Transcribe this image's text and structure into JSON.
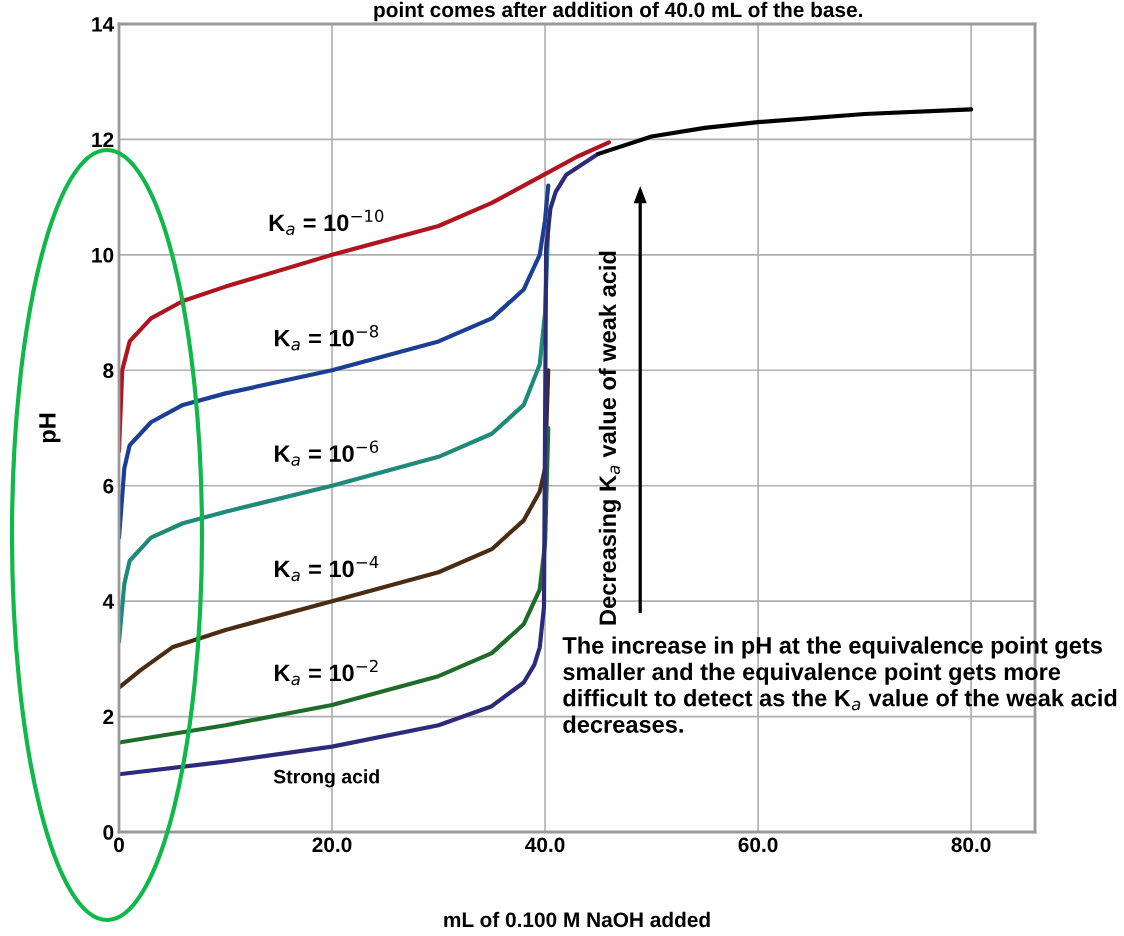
{
  "chart_data": {
    "type": "line",
    "title": "point comes after addition of 40.0 mL of the base.",
    "xlabel": "mL of 0.100 M NaOH added",
    "ylabel": "pH",
    "xlim": [
      0,
      86
    ],
    "ylim": [
      0,
      14
    ],
    "xticks": [
      0,
      {
        "value": 20,
        "label": "20.0"
      },
      {
        "value": 40,
        "label": "40.0"
      },
      {
        "value": 60,
        "label": "60.0"
      },
      {
        "value": 80,
        "label": "80.0"
      }
    ],
    "yticks": [
      0,
      2,
      4,
      6,
      8,
      10,
      12,
      14
    ],
    "grid": true,
    "marker": "none",
    "line_style": "solid",
    "series": [
      {
        "name": "K$_{a}$ = 10$^{−10}$",
        "color": "#b0141e",
        "x": [
          0,
          0.3,
          1,
          3,
          6,
          10,
          20,
          30,
          35,
          38,
          40,
          43,
          46
        ],
        "values": [
          6.6,
          8.0,
          8.5,
          8.9,
          9.2,
          9.45,
          10.0,
          10.5,
          10.9,
          11.2,
          11.4,
          11.7,
          11.95
        ]
      },
      {
        "name": "K$_{a}$ = 10$^{−8}$",
        "color": "#1c3f94",
        "x": [
          0,
          0.5,
          1,
          3,
          6,
          10,
          20,
          30,
          35,
          38,
          39.5,
          40,
          40.3
        ],
        "values": [
          5.1,
          6.3,
          6.7,
          7.1,
          7.4,
          7.6,
          8.0,
          8.5,
          8.9,
          9.4,
          10.0,
          10.6,
          11.2
        ]
      },
      {
        "name": "K$_{a}$ = 10$^{−6}$",
        "color": "#1f8a7a",
        "x": [
          0,
          0.5,
          1,
          3,
          6,
          10,
          20,
          30,
          35,
          38,
          39.5,
          40,
          40.3
        ],
        "values": [
          3.3,
          4.3,
          4.7,
          5.1,
          5.35,
          5.55,
          6.0,
          6.5,
          6.9,
          7.4,
          8.1,
          9.0,
          10.5
        ]
      },
      {
        "name": "K$_{a}$ = 10$^{−4}$",
        "color": "#4a2c14",
        "x": [
          0,
          2,
          5,
          10,
          20,
          30,
          35,
          38,
          39.5,
          40,
          40.3
        ],
        "values": [
          2.5,
          2.8,
          3.2,
          3.5,
          4.0,
          4.5,
          4.9,
          5.4,
          5.9,
          6.3,
          8.0
        ]
      },
      {
        "name": "K$_{a}$ = 10$^{−2}$",
        "color": "#1e6b2a",
        "x": [
          0,
          10,
          20,
          30,
          35,
          38,
          39.5,
          40,
          40.3
        ],
        "values": [
          1.55,
          1.85,
          2.2,
          2.7,
          3.1,
          3.6,
          4.2,
          5.0,
          7.0
        ]
      },
      {
        "name": "Strong acid",
        "color": "#2e2a7a",
        "x": [
          0,
          10,
          20,
          30,
          35,
          38,
          39,
          39.5,
          39.9,
          40,
          40.1,
          40.5,
          41,
          42,
          45
        ],
        "values": [
          1.0,
          1.22,
          1.48,
          1.85,
          2.18,
          2.59,
          2.9,
          3.2,
          3.9,
          7.0,
          10.1,
          10.8,
          11.09,
          11.39,
          11.75
        ]
      },
      {
        "color": "#000000",
        "x": [
          45,
          50,
          55,
          60,
          70,
          80
        ],
        "values": [
          11.75,
          12.05,
          12.2,
          12.3,
          12.44,
          12.52
        ]
      }
    ],
    "annotations": [
      "Decreasing K$_{a}$ value of weak acid",
      "The increase in pH at the equivalence point gets smaller and the equivalence point gets more difficult to detect as the K$_{a}$ value of the weak acid decreases."
    ]
  }
}
